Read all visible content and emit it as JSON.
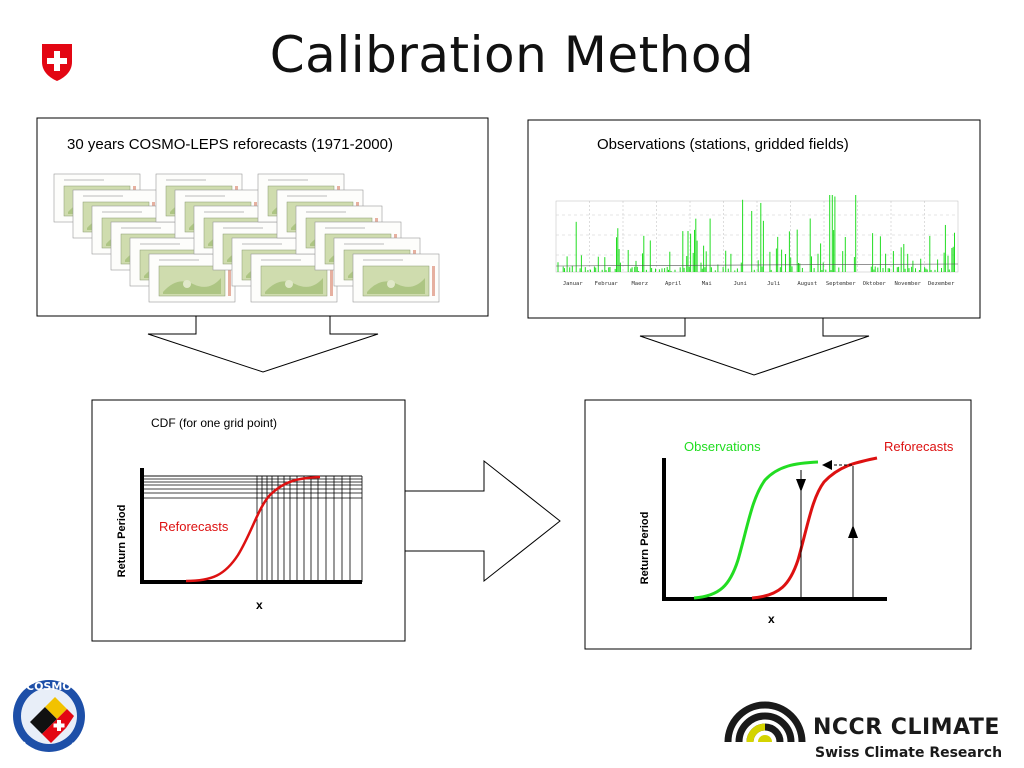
{
  "slide": {
    "title": "Calibration Method"
  },
  "panels": {
    "reforecasts_label": "30 years COSMO-LEPS reforecasts (1971-2000)",
    "observations_label": "Observations (stations, gridded fields)",
    "cdf_label": "CDF (for one grid point)",
    "cdf_curve_label": "Reforecasts",
    "cdf_y_label": "Return Period",
    "cdf_x_label": "x",
    "qm_obs_label": "Observations",
    "qm_ref_label": "Reforecasts",
    "qm_y_label": "Return Period",
    "qm_x_label": "x"
  },
  "timeseries": {
    "months": [
      "Januar",
      "Februar",
      "Maerz",
      "April",
      "Mai",
      "Juni",
      "Juli",
      "August",
      "September",
      "Oktober",
      "November",
      "Dezember"
    ]
  },
  "logos": {
    "nccr_line1": "NCCR CLIMATE",
    "nccr_line2": "Swiss Climate Research",
    "cosmo": "COSMO"
  },
  "colors": {
    "observations": "#22dd22",
    "reforecasts": "#dd1111",
    "swiss_red": "#e30613",
    "nccr_yellow": "#d4d400"
  }
}
